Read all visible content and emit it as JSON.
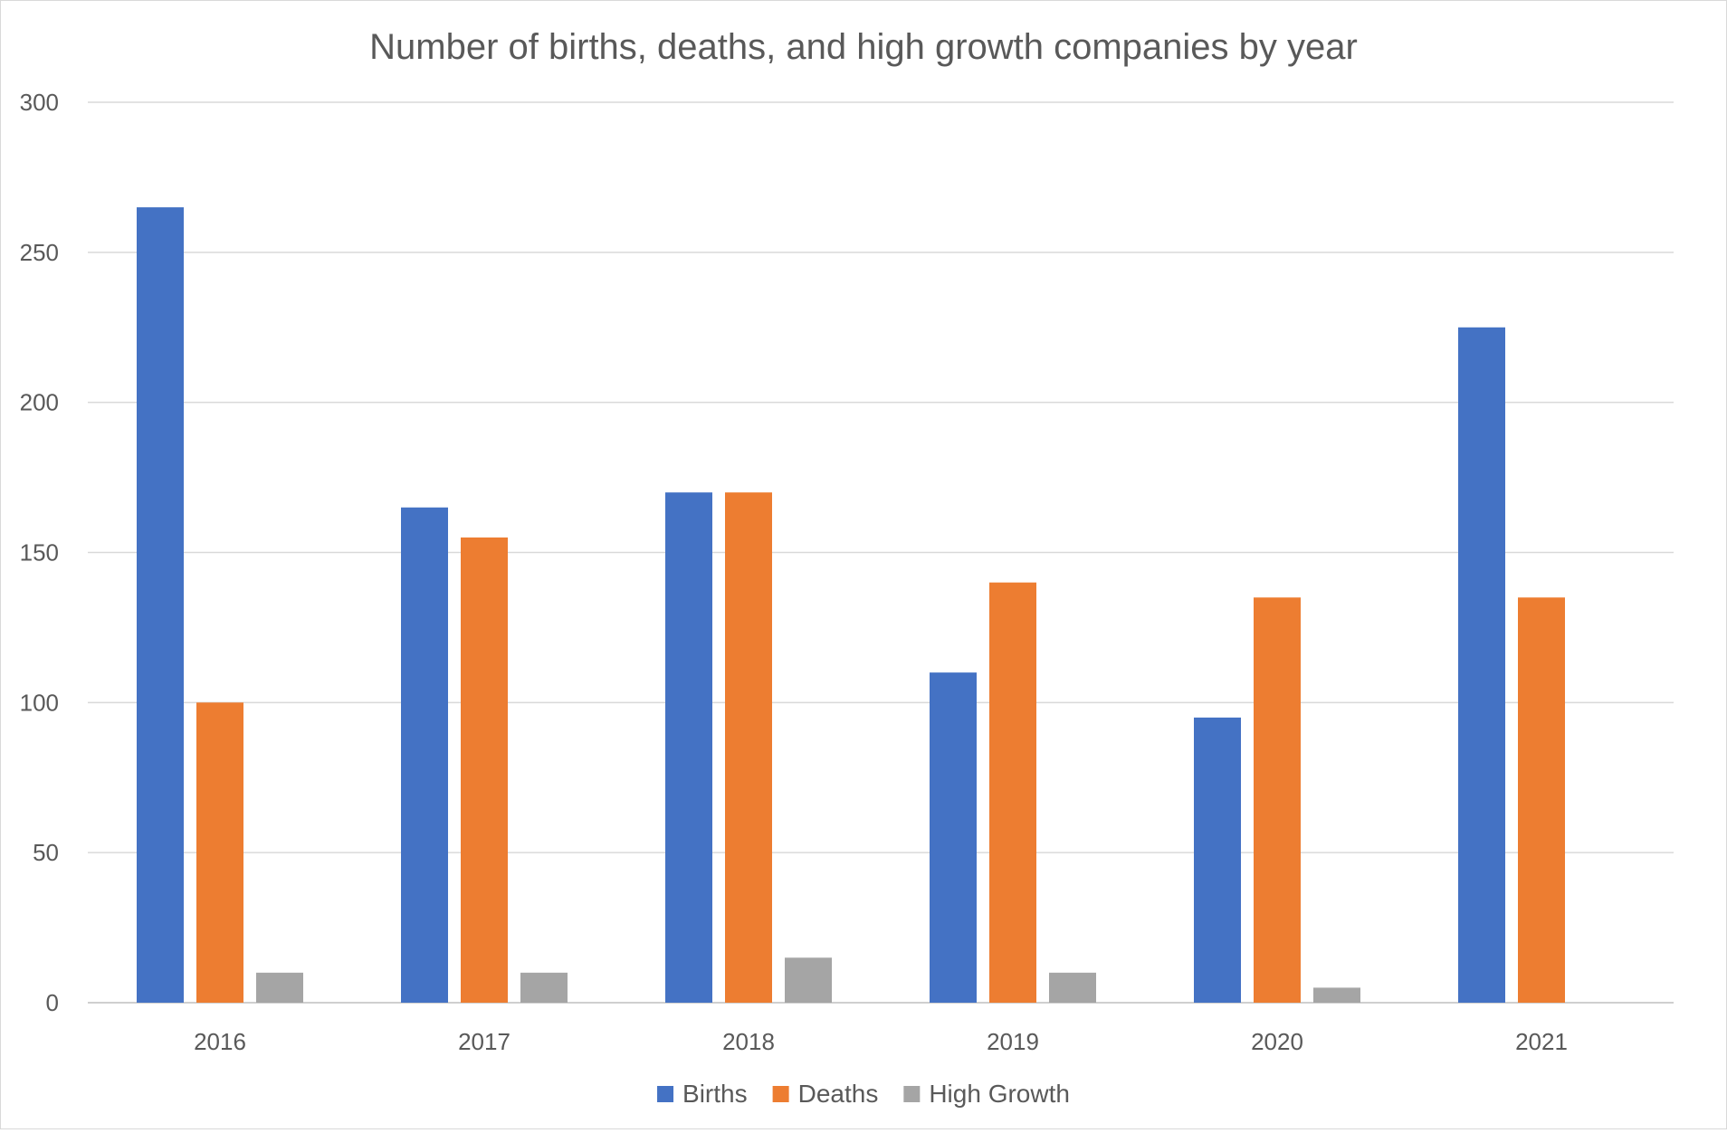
{
  "chart_data": {
    "type": "bar",
    "title": "Number of births, deaths, and high growth companies by year",
    "xlabel": "",
    "ylabel": "",
    "categories": [
      "2016",
      "2017",
      "2018",
      "2019",
      "2020",
      "2021"
    ],
    "series": [
      {
        "name": "Births",
        "color": "#4472c4",
        "values": [
          265,
          165,
          170,
          110,
          95,
          225
        ]
      },
      {
        "name": "Deaths",
        "color": "#ed7d31",
        "values": [
          100,
          155,
          170,
          140,
          135,
          135
        ]
      },
      {
        "name": "High Growth",
        "color": "#a5a5a5",
        "values": [
          10,
          10,
          15,
          10,
          5,
          0
        ]
      }
    ],
    "ylim": [
      0,
      300
    ],
    "yticks": [
      "0",
      "50",
      "100",
      "150",
      "200",
      "250",
      "300"
    ],
    "grid": true,
    "legend_position": "bottom"
  }
}
